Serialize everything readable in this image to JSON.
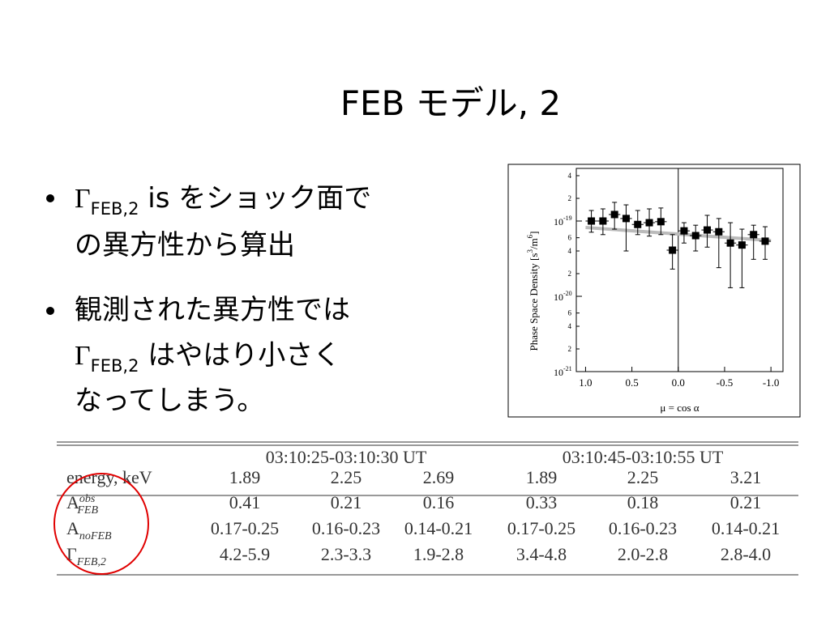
{
  "title": "FEB モデル, 2",
  "bullets": [
    {
      "symbol": "Γ",
      "sub": "FEB,2",
      "lines": [
        " is をショック面で",
        "の異方性から算出"
      ]
    },
    {
      "lead": "観測された異方性では",
      "symbol": "Γ",
      "sub": "FEB,2",
      "lines": [
        " はやはり小さく",
        "なってしまう。"
      ]
    }
  ],
  "chart_data": {
    "type": "scatter",
    "log_y": true,
    "x_label": "μ = cos α",
    "y_label_parts": [
      "Phase Space Density [s",
      "3",
      "/m",
      "6",
      "]"
    ],
    "xlim": [
      1.1,
      -1.13
    ],
    "ylim": [
      1e-21,
      5e-19
    ],
    "xticks": [
      {
        "value": 1,
        "label": "1.0"
      },
      0.5,
      {
        "value": 0,
        "label": "0.0"
      },
      -0.5,
      {
        "value": -1,
        "label": "-1.0"
      }
    ],
    "yticks": [
      4e-19,
      2e-19,
      {
        "value": 1e-19,
        "label": "10",
        "sup": "-19"
      },
      6e-20,
      4e-20,
      2e-20,
      {
        "value": 1e-20,
        "label": "10",
        "sup": "-20"
      },
      6e-21,
      4e-21,
      2e-21,
      {
        "value": 1e-21,
        "label": "10",
        "sup": "-21"
      }
    ],
    "ytick_labels": {
      "4e-19": "4",
      "2e-19": "2",
      "6e-20": "6",
      "4e-20": "4",
      "2e-20": "2",
      "6e-21": "6",
      "4e-21": "4",
      "2e-21": "2"
    },
    "vline": 0,
    "series": [
      {
        "color": "#000000",
        "xerr": 0.0625,
        "x": [
          0.9375,
          0.8125,
          0.6875,
          0.5625,
          0.4375,
          0.3125,
          0.1875,
          0.0625,
          -0.0625,
          -0.1875,
          -0.3125,
          -0.4375,
          -0.5625,
          -0.6875,
          -0.8125,
          -0.9375
        ],
        "values": [
          1e-19,
          1e-19,
          1.22e-19,
          1.08e-19,
          9e-20,
          9.5e-20,
          9.8e-20,
          4.1e-20,
          7.4e-20,
          6.4e-20,
          7.6e-20,
          7.2e-20,
          5.1e-20,
          4.8e-20,
          6.6e-20,
          5.4e-20
        ],
        "y_low": [
          7.1e-20,
          6.6e-20,
          7.8e-20,
          4e-20,
          6.6e-20,
          6.3e-20,
          6.6e-20,
          2.3e-20,
          5.1e-20,
          4e-20,
          4.5e-20,
          2.4e-20,
          1.3e-20,
          1.3e-20,
          3.1e-20,
          3.1e-20
        ],
        "y_high": [
          1.38e-19,
          1.45e-19,
          1.77e-19,
          1.64e-19,
          1.38e-19,
          1.45e-19,
          1.49e-19,
          6.6e-20,
          9.5e-20,
          8.8e-20,
          1.19e-19,
          1.08e-19,
          9.5e-20,
          7.8e-20,
          8.8e-20,
          8.4e-20
        ]
      }
    ],
    "fit": {
      "color": "#bbbbbb",
      "x": [
        1.0,
        -1.0
      ],
      "values": [
        8.2e-20,
        5.5e-20
      ]
    }
  },
  "table": {
    "groups": [
      "03:10:25-03:10:30 UT",
      "03:10:45-03:10:55 UT"
    ],
    "rows": [
      {
        "label": "energy, keV",
        "cells": [
          1.89,
          2.25,
          2.69,
          1.89,
          2.25,
          3.21
        ]
      },
      {
        "label": "A",
        "sup": "obs",
        "sub": "FEB",
        "cells": [
          0.41,
          0.21,
          0.16,
          0.33,
          0.18,
          0.21
        ]
      },
      {
        "label": "A",
        "sub": "noFEB",
        "cells": [
          "0.17-0.25",
          "0.16-0.23",
          "0.14-0.21",
          "0.17-0.25",
          "0.16-0.23",
          "0.14-0.21"
        ]
      },
      {
        "label": "Γ",
        "sub": "FEB,2",
        "cells": [
          "4.2-5.9",
          "2.3-3.3",
          "1.9-2.8",
          "3.4-4.8",
          "2.0-2.8",
          "2.8-4.0"
        ]
      }
    ]
  }
}
